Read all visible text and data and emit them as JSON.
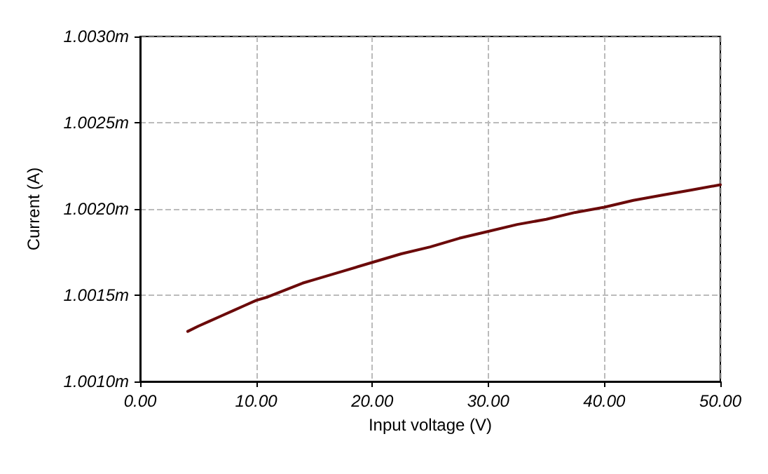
{
  "chart_data": {
    "type": "line",
    "xlabel": "Input voltage (V)",
    "ylabel": "Current (A)",
    "x": [
      4.1,
      5,
      6,
      7,
      8,
      9,
      10,
      11,
      12.5,
      14,
      15,
      17.5,
      20,
      22.5,
      25,
      27.5,
      30,
      32.5,
      35,
      37.5,
      40,
      42.5,
      45,
      47.5,
      50
    ],
    "series": [
      {
        "color": "#6b0a0a",
        "values": [
          1.00129,
          1.00132,
          1.00135,
          1.00138,
          1.00141,
          1.00144,
          1.00147,
          1.00149,
          1.00153,
          1.00157,
          1.00159,
          1.00164,
          1.00169,
          1.00174,
          1.00178,
          1.00183,
          1.00187,
          1.00191,
          1.00194,
          1.00198,
          1.00201,
          1.00205,
          1.00208,
          1.00211,
          1.00214
        ]
      }
    ],
    "xlim": [
      0,
      50
    ],
    "xticks": [
      {
        "value": 0,
        "label": "0.00"
      },
      {
        "value": 10,
        "label": "10.00"
      },
      {
        "value": 20,
        "label": "20.00"
      },
      {
        "value": 30,
        "label": "30.00"
      },
      {
        "value": 40,
        "label": "40.00"
      },
      {
        "value": 50,
        "label": "50.00"
      }
    ],
    "ylim": [
      1.001,
      1.003
    ],
    "yticks": [
      {
        "value": 1.001,
        "label": "1.0010m"
      },
      {
        "value": 1.0015,
        "label": "1.0015m"
      },
      {
        "value": 1.002,
        "label": "1.0020m"
      },
      {
        "value": 1.0025,
        "label": "1.0025m"
      },
      {
        "value": 1.003,
        "label": "1.0030m"
      }
    ],
    "grid": true,
    "line_style": "solid",
    "marker": "none"
  }
}
